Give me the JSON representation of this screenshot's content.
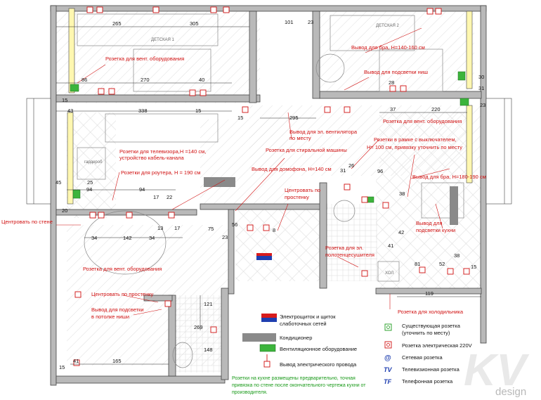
{
  "rooms": {
    "kids1": "ДЕТСКАЯ 1",
    "kids2": "ДЕТСКАЯ 2",
    "wardrobe": "гардероб",
    "fridge": "ХОЛ"
  },
  "dims": {
    "d265": "265",
    "d305": "305",
    "d101": "101",
    "d23a": "23",
    "d86": "86",
    "d270": "270",
    "d40": "40",
    "d15a": "15",
    "d43": "43",
    "d338": "338",
    "d15b": "15",
    "d295": "295",
    "d15c": "15",
    "d37": "37",
    "d220": "220",
    "d23b": "23",
    "d28": "28",
    "d31": "31",
    "d30": "30",
    "d45": "45",
    "d25": "25",
    "d94a": "94",
    "d94b": "94",
    "d17": "17",
    "d22": "22",
    "d20": "20",
    "d34a": "34",
    "d142": "142",
    "d34b": "34",
    "d13": "13",
    "d17b": "17",
    "d75": "75",
    "d23c": "23",
    "d56": "56",
    "d8": "8",
    "d31b": "31",
    "d26": "26",
    "d96": "96",
    "d38a": "38",
    "d41": "41",
    "d42": "42",
    "d81": "81",
    "d52": "52",
    "d38b": "38",
    "d15d": "15",
    "d119": "119",
    "d121": "121",
    "d269": "269",
    "d148": "148",
    "d41b": "41",
    "d165": "165",
    "d15e": "15"
  },
  "annotations": {
    "vent_kids1": "Розетка для вент. оборудования",
    "bra_kids2": "Вывод для бра, H=140-160 см",
    "niche_light": "Вывод для подсветки ниш",
    "fan_output_1": "Вывод для эл. вентилятора",
    "fan_output_2": "по месту",
    "vent_living": "Розетка для вент. оборудования",
    "tv_socket_1": "Розетки для телевизора,H =140 см,",
    "tv_socket_2": "устройство кабель-канала",
    "router": "Розетки для роутера, H = 190 см",
    "washer": "Розетка для стиральной машины",
    "intercom": "Вывод для домофона, H=140 см",
    "switch_box_1": "Розетки в рамке с выключателем,",
    "switch_box_2": "H= 100 см, привязку уточнить по месту",
    "bra_bedroom": "Вывод для бра, H=180-190 см",
    "center_wall_1": "Центровать по",
    "center_wall_2": "простенку",
    "center_left": "Центровать по стене",
    "kitchen_light_1": "Вывод для",
    "kitchen_light_2": "подсветки кухни",
    "towel_1": "Розетка для эл.",
    "towel_2": "полотенцесушителя",
    "vent_hall": "Розетка для вент. оборудования",
    "center_pier": "Центровать по простенку",
    "ceiling_niche_1": "Вывод для подсветки",
    "ceiling_niche_2": "в потолке ниши",
    "fridge_socket": "Розетка для холодильника"
  },
  "legend": {
    "panel_1": "Электрощиток и щиток",
    "panel_2": "слаботочных сетей",
    "ac": "Кондиционер",
    "vent": "Вентиляционное оборудование",
    "wire": "Вывод электрического провода",
    "existing_1": "Существующая розетка",
    "existing_2": "(уточнить по месту)",
    "socket220": "Розетка электрическая 220V",
    "network": "Сетевая розетка",
    "tv": "Телевизионная розетка",
    "phone": "Телефонная розетка",
    "tv_symbol": "TV",
    "tf_symbol": "TF",
    "net_symbol": "@"
  },
  "note": {
    "line1": "Розетки на кухне размещены предварительно, точная",
    "line2": "привязка по стене после окончательного чертежа кухни от",
    "line3": "производителя."
  },
  "watermark": {
    "logo": "KV",
    "word": "design"
  },
  "colors": {
    "wall": "#b9b9b9",
    "red": "#d01010",
    "green": "#1a9a1a",
    "vent": "#3cb43c",
    "panel_red": "#d81c1c",
    "panel_blue": "#1f3fb0"
  }
}
